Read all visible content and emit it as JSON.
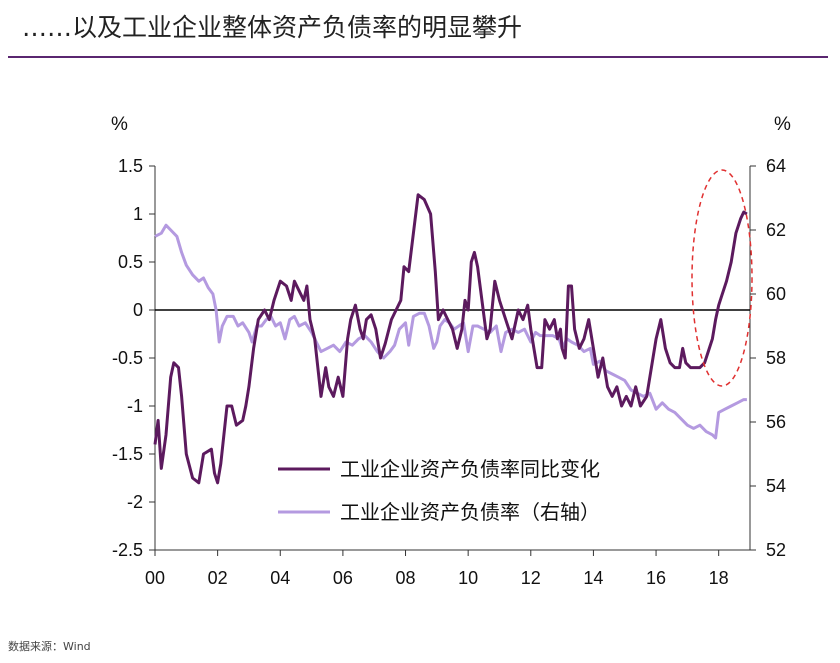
{
  "page": {
    "title": "……以及工业企业整体资产负债率的明显攀升",
    "source": "数据来源：Wind"
  },
  "chart_data": {
    "type": "line",
    "left_axis": {
      "unit": "%",
      "range": [
        -2.5,
        1.5
      ],
      "ticks": [
        "1.5",
        "1",
        "0.5",
        "0",
        "-0.5",
        "-1",
        "-1.5",
        "-2",
        "-2.5"
      ]
    },
    "right_axis": {
      "unit": "%",
      "range": [
        52,
        64
      ],
      "ticks": [
        "64",
        "62",
        "60",
        "58",
        "56",
        "54",
        "52"
      ]
    },
    "x_axis": {
      "range": [
        2000,
        2019
      ],
      "ticks": [
        "00",
        "02",
        "04",
        "06",
        "08",
        "10",
        "12",
        "14",
        "16",
        "18"
      ]
    },
    "colors": {
      "series1": "#5c1a5e",
      "series2": "#b49ae0",
      "zero_line": "#000000",
      "highlight": "#e03030",
      "title_rule": "#5a2670"
    },
    "series": [
      {
        "name": "工业企业资产负债率同比变化",
        "axis": "left",
        "points": [
          [
            2000.0,
            -1.4
          ],
          [
            2000.1,
            -1.15
          ],
          [
            2000.2,
            -1.65
          ],
          [
            2000.35,
            -1.3
          ],
          [
            2000.5,
            -0.7
          ],
          [
            2000.6,
            -0.55
          ],
          [
            2000.75,
            -0.6
          ],
          [
            2000.85,
            -0.9
          ],
          [
            2001.0,
            -1.5
          ],
          [
            2001.2,
            -1.75
          ],
          [
            2001.4,
            -1.8
          ],
          [
            2001.55,
            -1.5
          ],
          [
            2001.8,
            -1.45
          ],
          [
            2001.9,
            -1.7
          ],
          [
            2002.0,
            -1.8
          ],
          [
            2002.1,
            -1.6
          ],
          [
            2002.2,
            -1.3
          ],
          [
            2002.3,
            -1.0
          ],
          [
            2002.45,
            -1.0
          ],
          [
            2002.6,
            -1.2
          ],
          [
            2002.8,
            -1.15
          ],
          [
            2002.9,
            -1.0
          ],
          [
            2003.0,
            -0.8
          ],
          [
            2003.15,
            -0.4
          ],
          [
            2003.3,
            -0.1
          ],
          [
            2003.5,
            0.0
          ],
          [
            2003.65,
            -0.1
          ],
          [
            2003.8,
            0.1
          ],
          [
            2004.0,
            0.3
          ],
          [
            2004.2,
            0.25
          ],
          [
            2004.35,
            0.1
          ],
          [
            2004.45,
            0.3
          ],
          [
            2004.6,
            0.2
          ],
          [
            2004.75,
            0.1
          ],
          [
            2004.85,
            0.25
          ],
          [
            2004.95,
            -0.1
          ],
          [
            2005.1,
            -0.3
          ],
          [
            2005.3,
            -0.9
          ],
          [
            2005.45,
            -0.6
          ],
          [
            2005.55,
            -0.8
          ],
          [
            2005.7,
            -0.9
          ],
          [
            2005.85,
            -0.7
          ],
          [
            2006.0,
            -0.9
          ],
          [
            2006.15,
            -0.3
          ],
          [
            2006.25,
            -0.1
          ],
          [
            2006.4,
            0.05
          ],
          [
            2006.55,
            -0.2
          ],
          [
            2006.65,
            -0.3
          ],
          [
            2006.75,
            -0.1
          ],
          [
            2006.9,
            -0.05
          ],
          [
            2007.05,
            -0.2
          ],
          [
            2007.2,
            -0.5
          ],
          [
            2007.35,
            -0.35
          ],
          [
            2007.55,
            -0.1
          ],
          [
            2007.7,
            0.0
          ],
          [
            2007.85,
            0.1
          ],
          [
            2007.95,
            0.45
          ],
          [
            2008.1,
            0.4
          ],
          [
            2008.25,
            0.8
          ],
          [
            2008.4,
            1.2
          ],
          [
            2008.6,
            1.15
          ],
          [
            2008.8,
            1.0
          ],
          [
            2008.95,
            0.4
          ],
          [
            2009.05,
            -0.1
          ],
          [
            2009.2,
            0.0
          ],
          [
            2009.35,
            -0.1
          ],
          [
            2009.5,
            -0.2
          ],
          [
            2009.65,
            -0.4
          ],
          [
            2009.8,
            -0.2
          ],
          [
            2009.9,
            0.1
          ],
          [
            2010.0,
            0.0
          ],
          [
            2010.1,
            0.5
          ],
          [
            2010.2,
            0.6
          ],
          [
            2010.3,
            0.45
          ],
          [
            2010.4,
            0.2
          ],
          [
            2010.5,
            -0.05
          ],
          [
            2010.6,
            -0.3
          ],
          [
            2010.7,
            -0.2
          ],
          [
            2010.85,
            0.3
          ],
          [
            2011.0,
            0.1
          ],
          [
            2011.2,
            -0.1
          ],
          [
            2011.4,
            -0.3
          ],
          [
            2011.6,
            0.0
          ],
          [
            2011.75,
            -0.1
          ],
          [
            2011.9,
            0.05
          ],
          [
            2012.0,
            -0.2
          ],
          [
            2012.1,
            -0.4
          ],
          [
            2012.2,
            -0.6
          ],
          [
            2012.35,
            -0.6
          ],
          [
            2012.45,
            -0.1
          ],
          [
            2012.6,
            -0.2
          ],
          [
            2012.75,
            -0.1
          ],
          [
            2012.85,
            -0.3
          ],
          [
            2012.95,
            -0.2
          ],
          [
            2013.0,
            -0.4
          ],
          [
            2013.1,
            -0.5
          ],
          [
            2013.2,
            0.25
          ],
          [
            2013.3,
            0.25
          ],
          [
            2013.4,
            -0.2
          ],
          [
            2013.55,
            -0.4
          ],
          [
            2013.7,
            -0.3
          ],
          [
            2013.85,
            -0.1
          ],
          [
            2014.0,
            -0.4
          ],
          [
            2014.15,
            -0.7
          ],
          [
            2014.3,
            -0.5
          ],
          [
            2014.45,
            -0.8
          ],
          [
            2014.6,
            -0.9
          ],
          [
            2014.75,
            -0.8
          ],
          [
            2014.9,
            -1.0
          ],
          [
            2015.05,
            -0.9
          ],
          [
            2015.2,
            -1.0
          ],
          [
            2015.35,
            -0.8
          ],
          [
            2015.5,
            -1.0
          ],
          [
            2015.7,
            -0.9
          ],
          [
            2015.85,
            -0.6
          ],
          [
            2016.0,
            -0.3
          ],
          [
            2016.15,
            -0.1
          ],
          [
            2016.3,
            -0.4
          ],
          [
            2016.45,
            -0.55
          ],
          [
            2016.6,
            -0.6
          ],
          [
            2016.75,
            -0.6
          ],
          [
            2016.85,
            -0.4
          ],
          [
            2016.95,
            -0.55
          ],
          [
            2017.1,
            -0.6
          ],
          [
            2017.25,
            -0.6
          ],
          [
            2017.4,
            -0.6
          ],
          [
            2017.55,
            -0.55
          ],
          [
            2017.7,
            -0.4
          ],
          [
            2017.8,
            -0.3
          ],
          [
            2017.9,
            -0.1
          ],
          [
            2018.0,
            0.05
          ],
          [
            2018.1,
            0.15
          ],
          [
            2018.25,
            0.3
          ],
          [
            2018.4,
            0.5
          ],
          [
            2018.55,
            0.8
          ],
          [
            2018.7,
            0.95
          ],
          [
            2018.8,
            1.02
          ],
          [
            2018.9,
            1.0
          ]
        ]
      },
      {
        "name": "工业企业资产负债率（右轴）",
        "axis": "right",
        "points": [
          [
            2000.0,
            61.8
          ],
          [
            2000.2,
            61.9
          ],
          [
            2000.35,
            62.15
          ],
          [
            2000.5,
            62.0
          ],
          [
            2000.7,
            61.8
          ],
          [
            2000.85,
            61.3
          ],
          [
            2001.0,
            60.9
          ],
          [
            2001.2,
            60.6
          ],
          [
            2001.4,
            60.4
          ],
          [
            2001.55,
            60.5
          ],
          [
            2001.7,
            60.2
          ],
          [
            2001.85,
            60.0
          ],
          [
            2001.95,
            59.5
          ],
          [
            2002.05,
            58.5
          ],
          [
            2002.15,
            59.0
          ],
          [
            2002.3,
            59.3
          ],
          [
            2002.5,
            59.3
          ],
          [
            2002.65,
            59.0
          ],
          [
            2002.8,
            59.1
          ],
          [
            2003.0,
            58.8
          ],
          [
            2003.1,
            58.5
          ],
          [
            2003.25,
            59.0
          ],
          [
            2003.4,
            59.0
          ],
          [
            2003.55,
            59.2
          ],
          [
            2003.7,
            59.3
          ],
          [
            2003.85,
            59.0
          ],
          [
            2004.0,
            59.1
          ],
          [
            2004.15,
            58.6
          ],
          [
            2004.3,
            59.2
          ],
          [
            2004.45,
            59.3
          ],
          [
            2004.6,
            59.0
          ],
          [
            2004.8,
            59.1
          ],
          [
            2005.0,
            58.8
          ],
          [
            2005.15,
            58.5
          ],
          [
            2005.3,
            58.2
          ],
          [
            2005.5,
            58.3
          ],
          [
            2005.7,
            58.4
          ],
          [
            2005.9,
            58.2
          ],
          [
            2006.1,
            58.5
          ],
          [
            2006.3,
            58.4
          ],
          [
            2006.5,
            58.6
          ],
          [
            2006.7,
            58.7
          ],
          [
            2006.9,
            58.5
          ],
          [
            2007.1,
            58.2
          ],
          [
            2007.3,
            58.0
          ],
          [
            2007.5,
            58.2
          ],
          [
            2007.65,
            58.4
          ],
          [
            2007.8,
            58.9
          ],
          [
            2008.0,
            59.1
          ],
          [
            2008.1,
            58.4
          ],
          [
            2008.25,
            59.3
          ],
          [
            2008.45,
            59.4
          ],
          [
            2008.6,
            59.4
          ],
          [
            2008.75,
            59.0
          ],
          [
            2008.9,
            58.3
          ],
          [
            2009.0,
            58.5
          ],
          [
            2009.1,
            59.0
          ],
          [
            2009.25,
            59.2
          ],
          [
            2009.4,
            59.1
          ],
          [
            2009.55,
            58.9
          ],
          [
            2009.7,
            59.0
          ],
          [
            2009.85,
            59.1
          ],
          [
            2010.0,
            58.2
          ],
          [
            2010.15,
            59.0
          ],
          [
            2010.3,
            59.0
          ],
          [
            2010.5,
            58.9
          ],
          [
            2010.7,
            58.8
          ],
          [
            2010.9,
            59.0
          ],
          [
            2011.05,
            58.2
          ],
          [
            2011.2,
            58.8
          ],
          [
            2011.4,
            58.9
          ],
          [
            2011.6,
            58.8
          ],
          [
            2011.8,
            58.9
          ],
          [
            2012.0,
            58.5
          ],
          [
            2012.15,
            58.8
          ],
          [
            2012.3,
            58.7
          ],
          [
            2012.5,
            58.7
          ],
          [
            2012.7,
            58.7
          ],
          [
            2012.9,
            58.6
          ],
          [
            2013.0,
            58.3
          ],
          [
            2013.15,
            58.6
          ],
          [
            2013.3,
            58.5
          ],
          [
            2013.5,
            58.4
          ],
          [
            2013.7,
            58.2
          ],
          [
            2013.9,
            58.3
          ],
          [
            2014.0,
            57.8
          ],
          [
            2014.2,
            57.9
          ],
          [
            2014.4,
            57.6
          ],
          [
            2014.6,
            57.5
          ],
          [
            2014.8,
            57.4
          ],
          [
            2015.0,
            57.3
          ],
          [
            2015.2,
            57.0
          ],
          [
            2015.4,
            56.9
          ],
          [
            2015.6,
            56.8
          ],
          [
            2015.8,
            56.9
          ],
          [
            2016.0,
            56.4
          ],
          [
            2016.2,
            56.6
          ],
          [
            2016.4,
            56.4
          ],
          [
            2016.6,
            56.3
          ],
          [
            2016.8,
            56.1
          ],
          [
            2017.0,
            55.9
          ],
          [
            2017.2,
            55.8
          ],
          [
            2017.4,
            55.9
          ],
          [
            2017.6,
            55.7
          ],
          [
            2017.8,
            55.6
          ],
          [
            2017.9,
            55.5
          ],
          [
            2018.0,
            56.3
          ],
          [
            2018.2,
            56.4
          ],
          [
            2018.4,
            56.5
          ],
          [
            2018.6,
            56.6
          ],
          [
            2018.8,
            56.7
          ],
          [
            2018.9,
            56.7
          ]
        ]
      }
    ],
    "grid": false,
    "legend_position": "bottom-center",
    "annotation": "dashed red ellipse highlighting 2018 rise"
  }
}
